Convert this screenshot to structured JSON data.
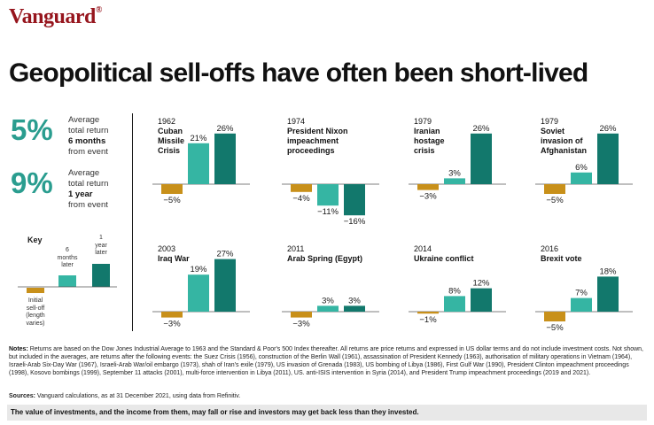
{
  "brand": {
    "name": "Vanguard",
    "mark": "®",
    "color": "#96151d"
  },
  "headline": "Geopolitical sell-offs have often been short-lived",
  "stats": [
    {
      "value": "5%",
      "line1": "Average",
      "line2": "total return",
      "line3": "6 months",
      "line4": "from event"
    },
    {
      "value": "9%",
      "line1": "Average",
      "line2": "total return",
      "line3": "1 year",
      "line4": "from event"
    }
  ],
  "key": {
    "title": "Key",
    "initial": [
      "Initial",
      "sell-off",
      "(length",
      "varies)"
    ],
    "six_months": [
      "6",
      "months",
      "later"
    ],
    "one_year": [
      "1",
      "year",
      "later"
    ]
  },
  "colors": {
    "initial": "#c8901a",
    "six_months": "#35b5a3",
    "one_year": "#12786c",
    "stat": "#2a9d8f"
  },
  "chart_data": {
    "type": "bar",
    "series_names": [
      "Initial sell-off",
      "6 months later",
      "1 year later"
    ],
    "panels": [
      {
        "year": "1962",
        "event": [
          "Cuban",
          "Missile",
          "Crisis"
        ],
        "values": [
          -5,
          21,
          26
        ],
        "labels": [
          "−5%",
          "21%",
          "26%"
        ]
      },
      {
        "year": "1974",
        "event": [
          "President Nixon",
          "impeachment",
          "proceedings"
        ],
        "values": [
          -4,
          -11,
          -16
        ],
        "labels": [
          "−4%",
          "−11%",
          "−16%"
        ]
      },
      {
        "year": "1979",
        "event": [
          "Iranian",
          "hostage",
          "crisis"
        ],
        "values": [
          -3,
          3,
          26
        ],
        "labels": [
          "−3%",
          "3%",
          "26%"
        ]
      },
      {
        "year": "1979",
        "event": [
          "Soviet",
          "invasion of",
          "Afghanistan"
        ],
        "values": [
          -5,
          6,
          26
        ],
        "labels": [
          "−5%",
          "6%",
          "26%"
        ]
      },
      {
        "year": "2003",
        "event": [
          "Iraq War"
        ],
        "values": [
          -3,
          19,
          27
        ],
        "labels": [
          "−3%",
          "19%",
          "27%"
        ]
      },
      {
        "year": "2011",
        "event": [
          "Arab Spring (Egypt)"
        ],
        "values": [
          -3,
          3,
          3
        ],
        "labels": [
          "−3%",
          "3%",
          "3%"
        ]
      },
      {
        "year": "2014",
        "event": [
          "Ukraine conflict"
        ],
        "values": [
          -1,
          8,
          12
        ],
        "labels": [
          "−1%",
          "8%",
          "12%"
        ]
      },
      {
        "year": "2016",
        "event": [
          "Brexit vote"
        ],
        "values": [
          -5,
          7,
          18
        ],
        "labels": [
          "−5%",
          "7%",
          "18%"
        ]
      }
    ]
  },
  "notes": {
    "label": "Notes:",
    "text": " Returns are based on the Dow Jones Industrial Average to 1963 and the Standard & Poor's 500 Index thereafter. All returns are price returns and expressed in US dollar terms and do not include investment costs. Not shown, but included in the averages, are returns after the following events: the Suez Crisis (1956), construction of the Berlin Wall (1961), assassination of President Kennedy (1963), authorisation of military operations in Vietnam (1964), Israeli-Arab Six-Day War (1967), Israeli-Arab War/oil embargo (1973), shah of Iran's exile (1979), US invasion of Grenada (1983), US bombing of Libya (1986), First Gulf War (1990), President Clinton impeachment proceedings (1998), Kosovo bombings (1999), September 11 attacks (2001), multi-force intervention in Libya (2011), US. anti-ISIS intervention in Syria (2014), and President Trump impeachment proceedings (2019 and 2021)."
  },
  "sources": {
    "label": "Sources:",
    "text": " Vanguard calculations, as at 31 December 2021, using data from Refinitiv."
  },
  "disclaimer": "The value of investments, and the income from them, may fall or rise and investors may get back less than they invested."
}
